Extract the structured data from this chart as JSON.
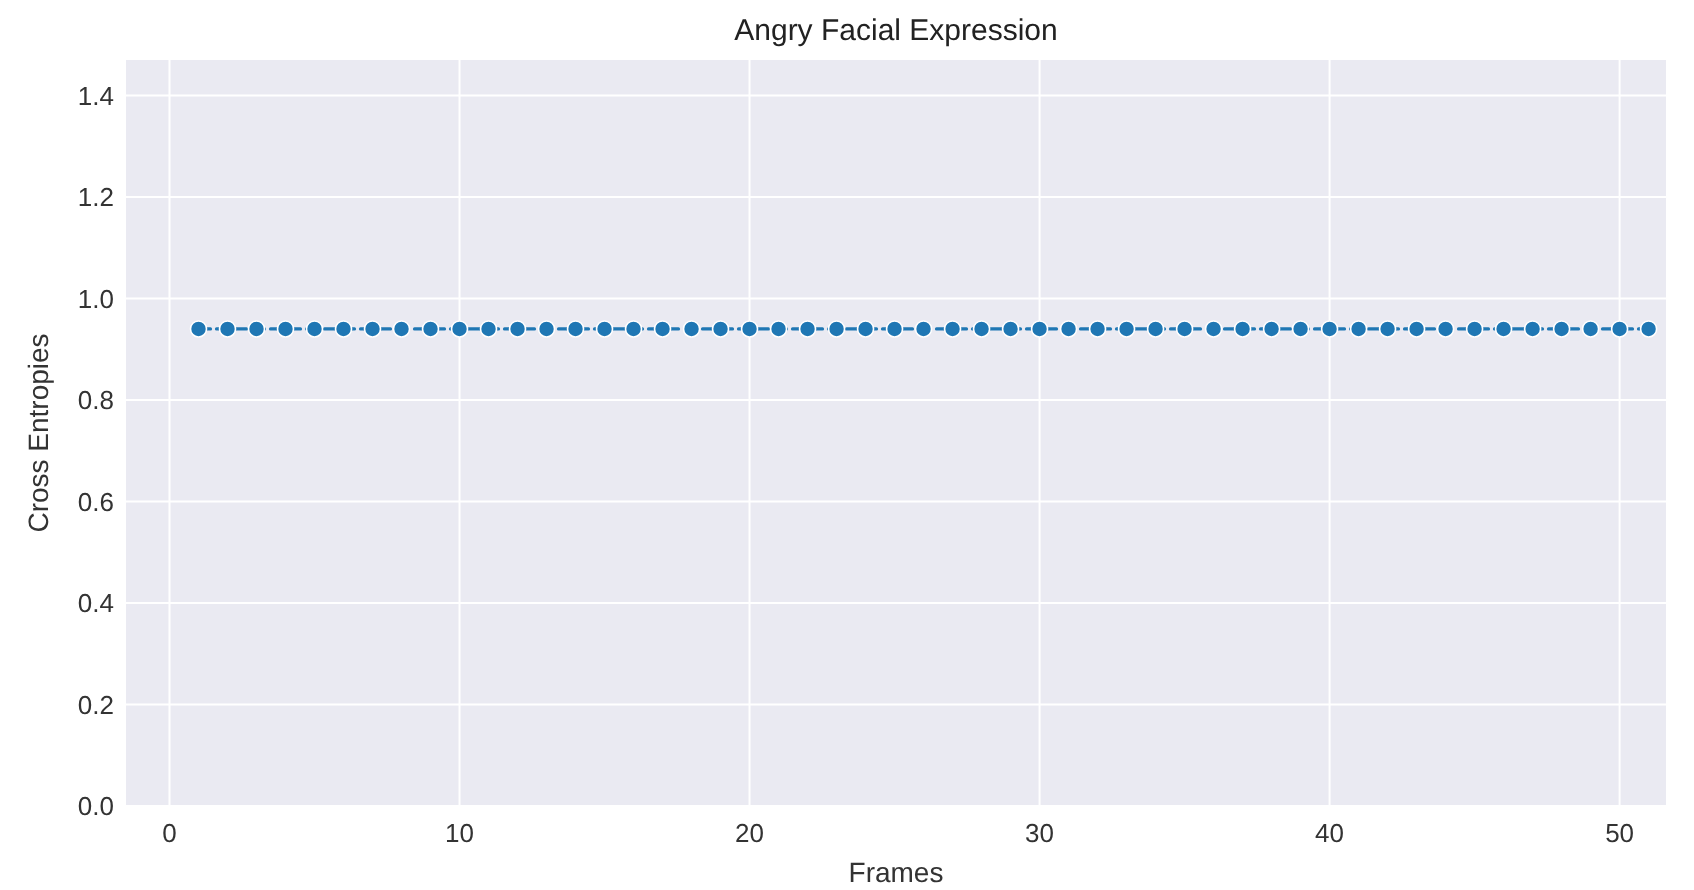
{
  "chart_data": {
    "type": "line",
    "title": "Angry Facial Expression",
    "xlabel": "Frames",
    "ylabel": "Cross Entropies",
    "x": [
      1,
      2,
      3,
      4,
      5,
      6,
      7,
      8,
      9,
      10,
      11,
      12,
      13,
      14,
      15,
      16,
      17,
      18,
      19,
      20,
      21,
      22,
      23,
      24,
      25,
      26,
      27,
      28,
      29,
      30,
      31,
      32,
      33,
      34,
      35,
      36,
      37,
      38,
      39,
      40,
      41,
      42,
      43,
      44,
      45,
      46,
      47,
      48,
      49,
      50,
      51
    ],
    "series": [
      {
        "color": "#1f77b4",
        "values": [
          0.94,
          0.94,
          0.94,
          0.94,
          0.94,
          0.94,
          0.94,
          0.94,
          0.94,
          0.94,
          0.94,
          0.94,
          0.94,
          0.94,
          0.94,
          0.94,
          0.94,
          0.94,
          0.94,
          0.94,
          0.94,
          0.94,
          0.94,
          0.94,
          0.94,
          0.94,
          0.94,
          0.94,
          0.94,
          0.94,
          0.94,
          0.94,
          0.94,
          0.94,
          0.94,
          0.94,
          0.94,
          0.94,
          0.94,
          0.94,
          0.94,
          0.94,
          0.94,
          0.94,
          0.94,
          0.94,
          0.94,
          0.94,
          0.94,
          0.94,
          0.94
        ]
      }
    ],
    "xlim": [
      -1.5,
      51.6
    ],
    "xticks": [
      0,
      10,
      20,
      30,
      40,
      50
    ],
    "ylim": [
      0,
      1.47
    ],
    "yticks": [
      {
        "value": 0,
        "label": "0.0"
      },
      {
        "value": 0.2,
        "label": "0.2"
      },
      {
        "value": 0.4,
        "label": "0.4"
      },
      {
        "value": 0.6,
        "label": "0.6"
      },
      {
        "value": 0.8,
        "label": "0.8"
      },
      {
        "value": 1,
        "label": "1.0"
      },
      {
        "value": 1.2,
        "label": "1.2"
      },
      {
        "value": 1.4,
        "label": "1.4"
      }
    ],
    "grid": true,
    "marker": "circle",
    "line_style": "dashed"
  }
}
